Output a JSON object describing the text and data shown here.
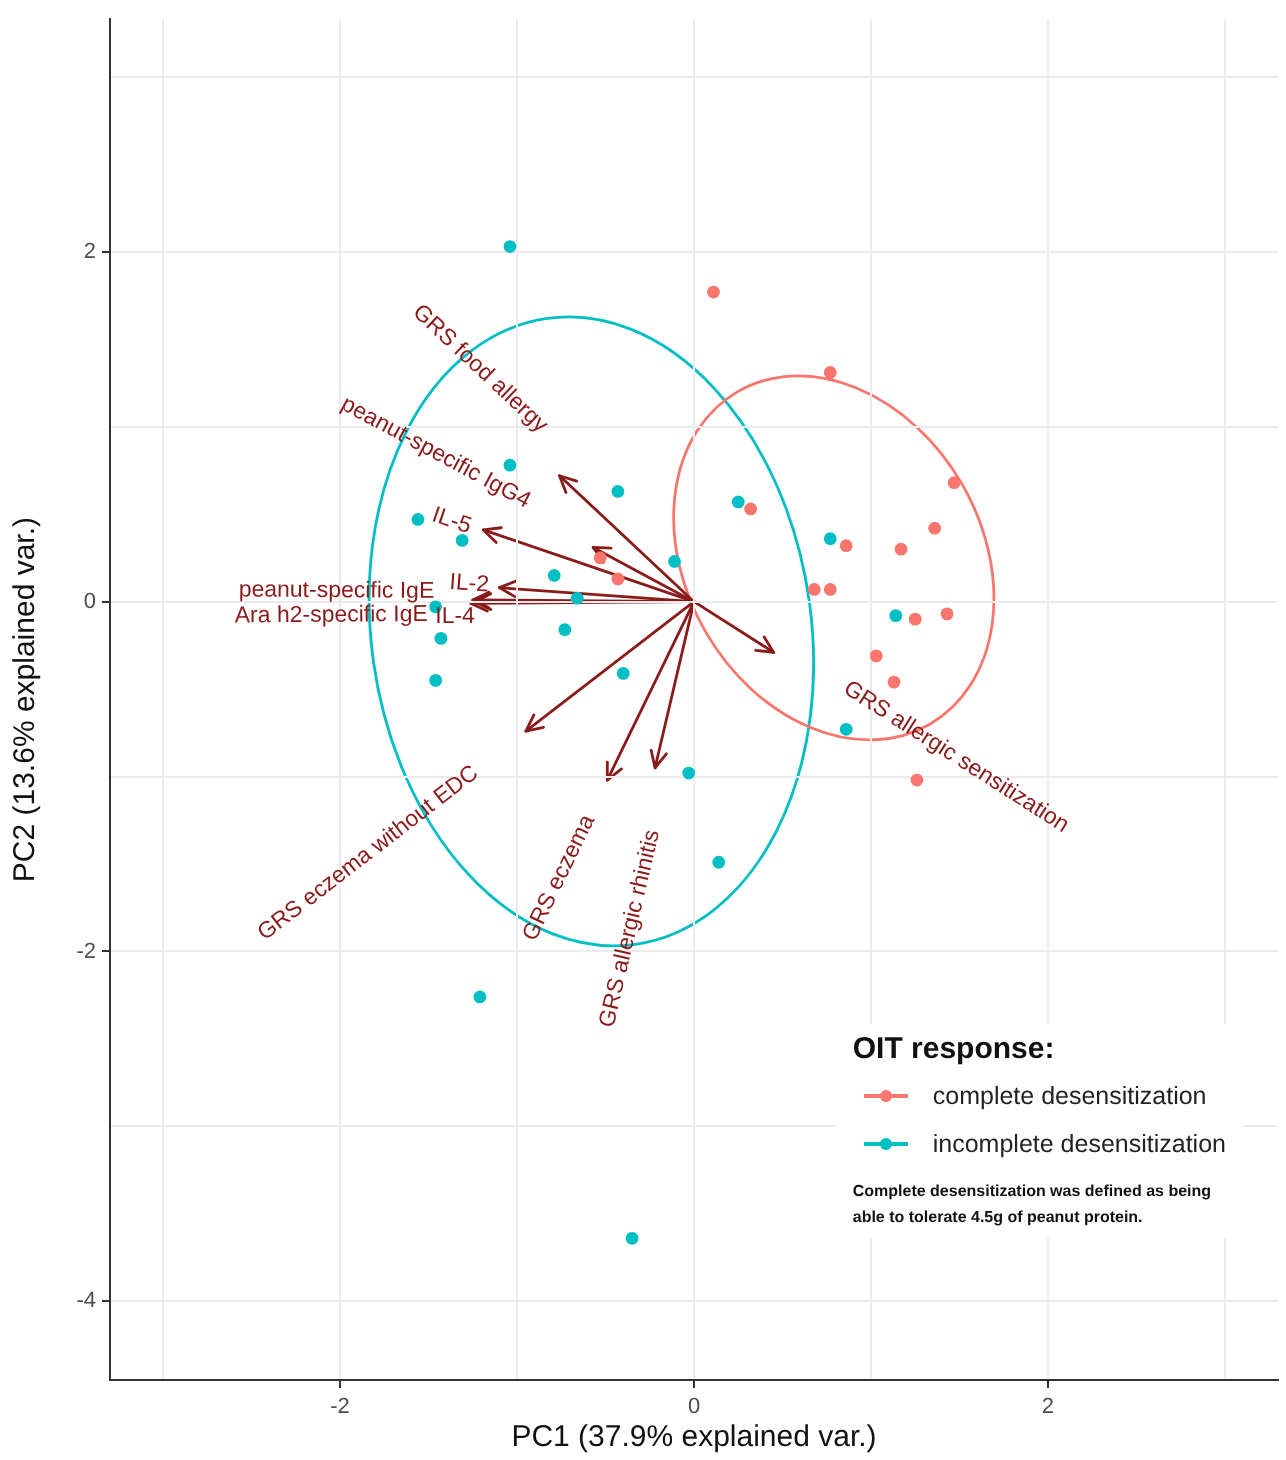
{
  "chart_data": {
    "type": "scatter",
    "xlabel": "PC1 (37.9% explained var.)",
    "ylabel": "PC2 (13.6% explained var.)",
    "legend_title": "OIT response:",
    "legend": "bottom right",
    "grid": true,
    "marker": "circle",
    "xlim": [
      -3.3,
      3.3
    ],
    "ylim": [
      -4.45,
      3.33
    ],
    "xticks": [
      {
        "value": -3,
        "label": null
      },
      -2,
      {
        "value": -1,
        "label": null
      },
      0,
      {
        "value": 1,
        "label": null
      },
      2,
      {
        "value": 3,
        "label": null
      }
    ],
    "yticks": [
      -4,
      {
        "value": -3,
        "label": null
      },
      -2,
      {
        "value": -1,
        "label": null
      },
      0,
      {
        "value": 1,
        "label": null
      },
      2,
      {
        "value": 3,
        "label": null
      }
    ],
    "series": [
      {
        "name": "complete desensitization",
        "color": "#f8766d",
        "x": [
          0.11,
          0.77,
          1.47,
          1.36,
          0.32,
          0.86,
          1.17,
          0.68,
          0.77,
          1.25,
          1.43,
          1.03,
          1.13,
          1.26,
          -0.53,
          -0.43
        ],
        "values": [
          1.77,
          1.31,
          0.68,
          0.42,
          0.53,
          0.32,
          0.3,
          0.07,
          0.07,
          -0.1,
          -0.07,
          -0.31,
          -0.46,
          -1.02,
          0.25,
          0.13
        ]
      },
      {
        "name": "incomplete desensitization",
        "color": "#00bfc4",
        "x": [
          -1.04,
          -1.04,
          -0.43,
          -1.56,
          -1.31,
          -0.11,
          -0.79,
          -0.66,
          -1.46,
          -1.43,
          -1.46,
          -0.73,
          -0.4,
          -0.03,
          0.14,
          -1.21,
          0.25,
          0.77,
          1.14,
          0.86,
          -0.35
        ],
        "values": [
          2.03,
          0.78,
          0.63,
          0.47,
          0.35,
          0.23,
          0.15,
          0.02,
          -0.03,
          -0.21,
          -0.45,
          -0.16,
          -0.41,
          -0.98,
          -1.49,
          -2.26,
          0.57,
          0.36,
          -0.08,
          -0.73,
          -3.64
        ]
      }
    ],
    "annotations": [
      "GRS food allergy",
      "peanut-specific IgG4",
      "IL-5",
      "IL-2",
      "peanut-specific IgE",
      "Ara h2-specific IgE",
      "IL-4",
      "GRS allergic sensitization",
      "GRS eczema without EDC",
      "GRS eczema",
      "GRS allergic rhinitis",
      "Complete desensitization was defined as being able to tolerate 4.5g of peanut protein."
    ]
  }
}
